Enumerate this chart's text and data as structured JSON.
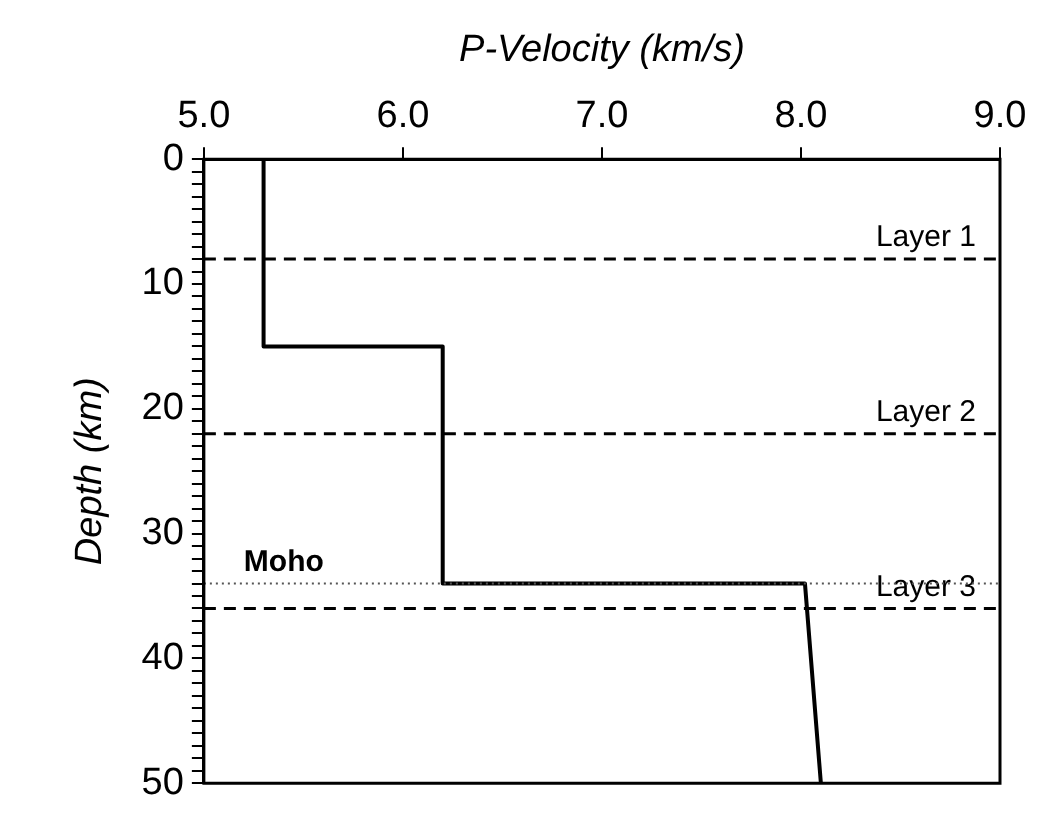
{
  "chart_data": {
    "type": "line",
    "xlabel": "P-Velocity (km/s)",
    "ylabel": "Depth (km)",
    "xlim": [
      5.0,
      9.0
    ],
    "xticks": [
      {
        "value": 5,
        "label": "5.0"
      },
      {
        "value": 6,
        "label": "6.0"
      },
      {
        "value": 7,
        "label": "7.0"
      },
      {
        "value": 8,
        "label": "8.0"
      },
      {
        "value": 9,
        "label": "9.0"
      }
    ],
    "ylim": [
      50,
      0
    ],
    "yticks": [
      0,
      {
        "value": 1,
        "label": null
      },
      {
        "value": 2,
        "label": null
      },
      {
        "value": 3,
        "label": null
      },
      {
        "value": 4,
        "label": null
      },
      {
        "value": 5,
        "label": null
      },
      {
        "value": 6,
        "label": null
      },
      {
        "value": 7,
        "label": null
      },
      {
        "value": 8,
        "label": null
      },
      {
        "value": 9,
        "label": null
      },
      10,
      {
        "value": 11,
        "label": null
      },
      {
        "value": 12,
        "label": null
      },
      {
        "value": 13,
        "label": null
      },
      {
        "value": 14,
        "label": null
      },
      {
        "value": 15,
        "label": null
      },
      {
        "value": 16,
        "label": null
      },
      {
        "value": 17,
        "label": null
      },
      {
        "value": 18,
        "label": null
      },
      {
        "value": 19,
        "label": null
      },
      20,
      {
        "value": 21,
        "label": null
      },
      {
        "value": 22,
        "label": null
      },
      {
        "value": 23,
        "label": null
      },
      {
        "value": 24,
        "label": null
      },
      {
        "value": 25,
        "label": null
      },
      {
        "value": 26,
        "label": null
      },
      {
        "value": 27,
        "label": null
      },
      {
        "value": 28,
        "label": null
      },
      {
        "value": 29,
        "label": null
      },
      30,
      {
        "value": 31,
        "label": null
      },
      {
        "value": 32,
        "label": null
      },
      {
        "value": 33,
        "label": null
      },
      {
        "value": 34,
        "label": null
      },
      {
        "value": 35,
        "label": null
      },
      {
        "value": 36,
        "label": null
      },
      {
        "value": 37,
        "label": null
      },
      {
        "value": 38,
        "label": null
      },
      {
        "value": 39,
        "label": null
      },
      40,
      {
        "value": 41,
        "label": null
      },
      {
        "value": 42,
        "label": null
      },
      {
        "value": 43,
        "label": null
      },
      {
        "value": 44,
        "label": null
      },
      {
        "value": 45,
        "label": null
      },
      {
        "value": 46,
        "label": null
      },
      {
        "value": 47,
        "label": null
      },
      {
        "value": 48,
        "label": null
      },
      {
        "value": 49,
        "label": null
      },
      50
    ],
    "series": [
      {
        "color": "#000000",
        "x": [
          5.3,
          5.3,
          6.2,
          6.2,
          8.02,
          8.1
        ],
        "values": [
          0,
          15,
          15,
          34,
          34,
          50
        ]
      }
    ],
    "ref_lines": [
      {
        "axis": "y",
        "value": 8,
        "label": "Layer 1",
        "line_style": "dashed",
        "color": "#000000"
      },
      {
        "axis": "y",
        "value": 22,
        "label": "Layer 2",
        "line_style": "dashed",
        "color": "#000000"
      },
      {
        "axis": "y",
        "value": 36,
        "label": "Layer 3",
        "line_style": "dashed",
        "color": "#000000"
      },
      {
        "axis": "y",
        "value": 34,
        "label": "Moho",
        "line_style": "dotted",
        "color": "#555555"
      }
    ],
    "grid": false,
    "legend": false,
    "marker": "none",
    "line_style": "solid"
  }
}
